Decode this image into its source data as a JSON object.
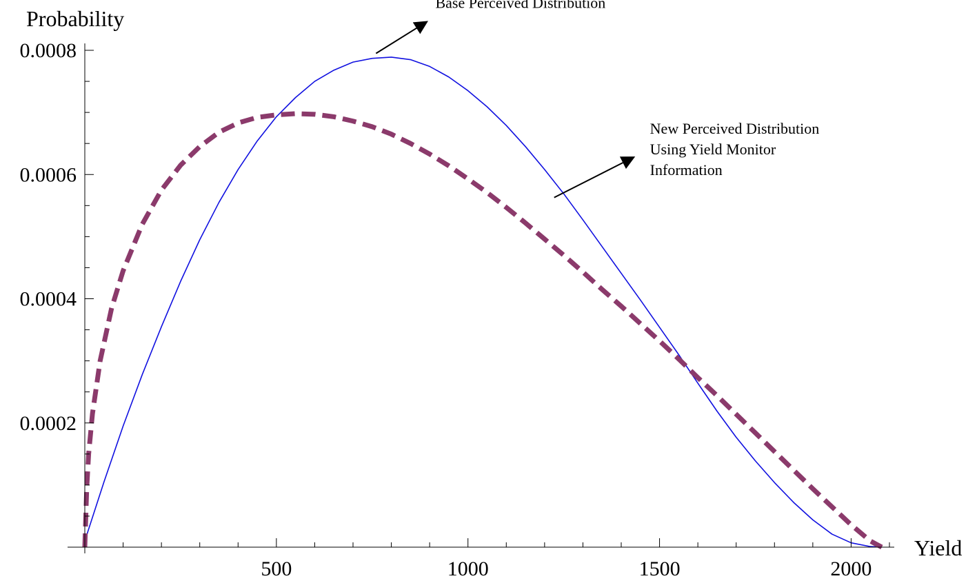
{
  "chart_data": {
    "type": "line",
    "xlabel": "Yield",
    "ylabel": "Probability",
    "xlim": [
      0,
      2100
    ],
    "ylim": [
      0,
      0.0008
    ],
    "x_ticks": [
      500,
      1000,
      1500,
      2000
    ],
    "x_tick_labels": [
      "500",
      "1000",
      "1500",
      "2000"
    ],
    "y_ticks": [
      0.0002,
      0.0004,
      0.0006,
      0.0008
    ],
    "y_tick_labels": [
      "0.0002",
      "0.0004",
      "0.0006",
      "0.0008"
    ],
    "grid": false,
    "series": [
      {
        "style": "solid",
        "color": "#1010e0",
        "x": [
          0,
          50,
          100,
          150,
          200,
          250,
          300,
          350,
          400,
          450,
          500,
          550,
          600,
          650,
          700,
          750,
          800,
          850,
          900,
          950,
          1000,
          1050,
          1100,
          1150,
          1200,
          1250,
          1300,
          1350,
          1400,
          1450,
          1500,
          1550,
          1600,
          1650,
          1700,
          1750,
          1800,
          1850,
          1900,
          1950,
          2000,
          2050,
          2080
        ],
        "y": [
          1e-05,
          0.000105,
          0.000195,
          0.000278,
          0.000355,
          0.000428,
          0.000495,
          0.000555,
          0.000608,
          0.000654,
          0.000693,
          0.000724,
          0.00075,
          0.000768,
          0.000781,
          0.000787,
          0.000789,
          0.000785,
          0.000774,
          0.000757,
          0.000735,
          0.000709,
          0.000679,
          0.000645,
          0.000608,
          0.000569,
          0.000527,
          0.000484,
          0.000441,
          0.000398,
          0.000354,
          0.00031,
          0.000264,
          0.000219,
          0.000177,
          0.000139,
          0.000104,
          7.2e-05,
          4.4e-05,
          2.1e-05,
          7e-06,
          1e-06,
          0.0
        ]
      },
      {
        "style": "dashed",
        "color": "#8b3a6b",
        "x": [
          0,
          5,
          10,
          20,
          40,
          70,
          100,
          150,
          200,
          250,
          300,
          350,
          400,
          450,
          500,
          550,
          600,
          650,
          700,
          750,
          800,
          850,
          900,
          950,
          1000,
          1050,
          1100,
          1150,
          1200,
          1250,
          1300,
          1350,
          1400,
          1450,
          1500,
          1550,
          1600,
          1650,
          1700,
          1750,
          1800,
          1850,
          1900,
          1950,
          2000,
          2050,
          2080
        ],
        "y": [
          0.0,
          9.5e-05,
          0.00015,
          0.000215,
          0.0003,
          0.000385,
          0.000445,
          0.00052,
          0.000575,
          0.000615,
          0.000645,
          0.000668,
          0.000683,
          0.000692,
          0.000696,
          0.000698,
          0.000697,
          0.000693,
          0.000686,
          0.000677,
          0.000665,
          0.00065,
          0.000633,
          0.000614,
          0.000593,
          0.000571,
          0.000547,
          0.000522,
          0.000496,
          0.00047,
          0.000443,
          0.000415,
          0.000388,
          0.00036,
          0.000332,
          0.000303,
          0.000273,
          0.000244,
          0.000214,
          0.000184,
          0.000154,
          0.000124,
          9.4e-05,
          6.5e-05,
          3.6e-05,
          1e-05,
          0.0
        ]
      }
    ],
    "annotations": [
      {
        "lines": [
          "Base Perceived Distribution"
        ],
        "arrow_tail": [
          760,
          0.000795
        ],
        "arrow_head": [
          890,
          0.000845
        ],
        "text_anchor": [
          915,
          0.000868
        ]
      },
      {
        "lines": [
          "New Perceived Distribution",
          "Using Yield Monitor",
          "Information"
        ],
        "arrow_tail": [
          1225,
          0.000563
        ],
        "arrow_head": [
          1430,
          0.000627
        ],
        "text_anchor": [
          1475,
          0.000666
        ]
      }
    ]
  }
}
